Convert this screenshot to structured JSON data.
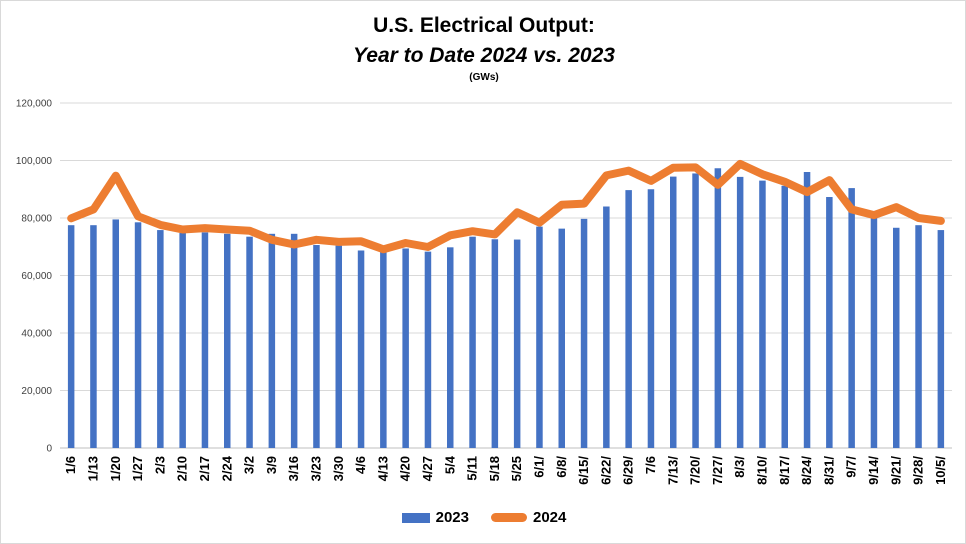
{
  "title": {
    "line1": "U.S. Electrical Output:",
    "line2": "Year to Date 2024 vs. 2023",
    "unit": "(GWs)"
  },
  "chart_data": {
    "type": "bar",
    "ylim": [
      0,
      120000
    ],
    "yticks": [
      "0",
      "20,000",
      "40,000",
      "60,000",
      "80,000",
      "100,000",
      "120,000"
    ],
    "grid": true,
    "legend_position": "bottom",
    "categories": [
      "1/6",
      "1/13",
      "1/20",
      "1/27",
      "2/3",
      "2/10",
      "2/17",
      "2/24",
      "3/2",
      "3/9",
      "3/16",
      "3/23",
      "3/30",
      "4/6",
      "4/13",
      "4/20",
      "4/27",
      "5/4",
      "5/11",
      "5/18",
      "5/25",
      "6/1/",
      "6/8/",
      "6/15/",
      "6/22/",
      "6/29/",
      "7/6",
      "7/13/",
      "7/20/",
      "7/27/",
      "8/3/",
      "8/10/",
      "8/17/",
      "8/24/",
      "8/31/",
      "9/7/",
      "9/14/",
      "9/21/",
      "9/28/",
      "10/5/"
    ],
    "series": [
      {
        "name": "2023",
        "kind": "bar",
        "color": "#4472c4",
        "values": [
          77500,
          77500,
          79500,
          78500,
          75800,
          74800,
          75000,
          74500,
          73500,
          74500,
          74500,
          70600,
          70400,
          68700,
          68200,
          69400,
          68300,
          69800,
          73500,
          72600,
          72500,
          77000,
          76300,
          79700,
          84000,
          89700,
          90000,
          94400,
          95500,
          97300,
          94300,
          93000,
          91200,
          96000,
          87300,
          90400,
          81000,
          76600,
          77500,
          75800
        ]
      },
      {
        "name": "2024",
        "kind": "line",
        "color": "#ed7d31",
        "values": [
          79900,
          83000,
          94700,
          80600,
          77600,
          76000,
          76500,
          76000,
          75600,
          72400,
          70800,
          72400,
          71700,
          71900,
          69100,
          71300,
          69900,
          74000,
          75400,
          74300,
          82000,
          78400,
          84600,
          85000,
          94800,
          96500,
          92900,
          97500,
          97600,
          91500,
          98800,
          95200,
          92600,
          89000,
          93200,
          83000,
          81000,
          83800,
          80000,
          79000
        ]
      }
    ]
  }
}
